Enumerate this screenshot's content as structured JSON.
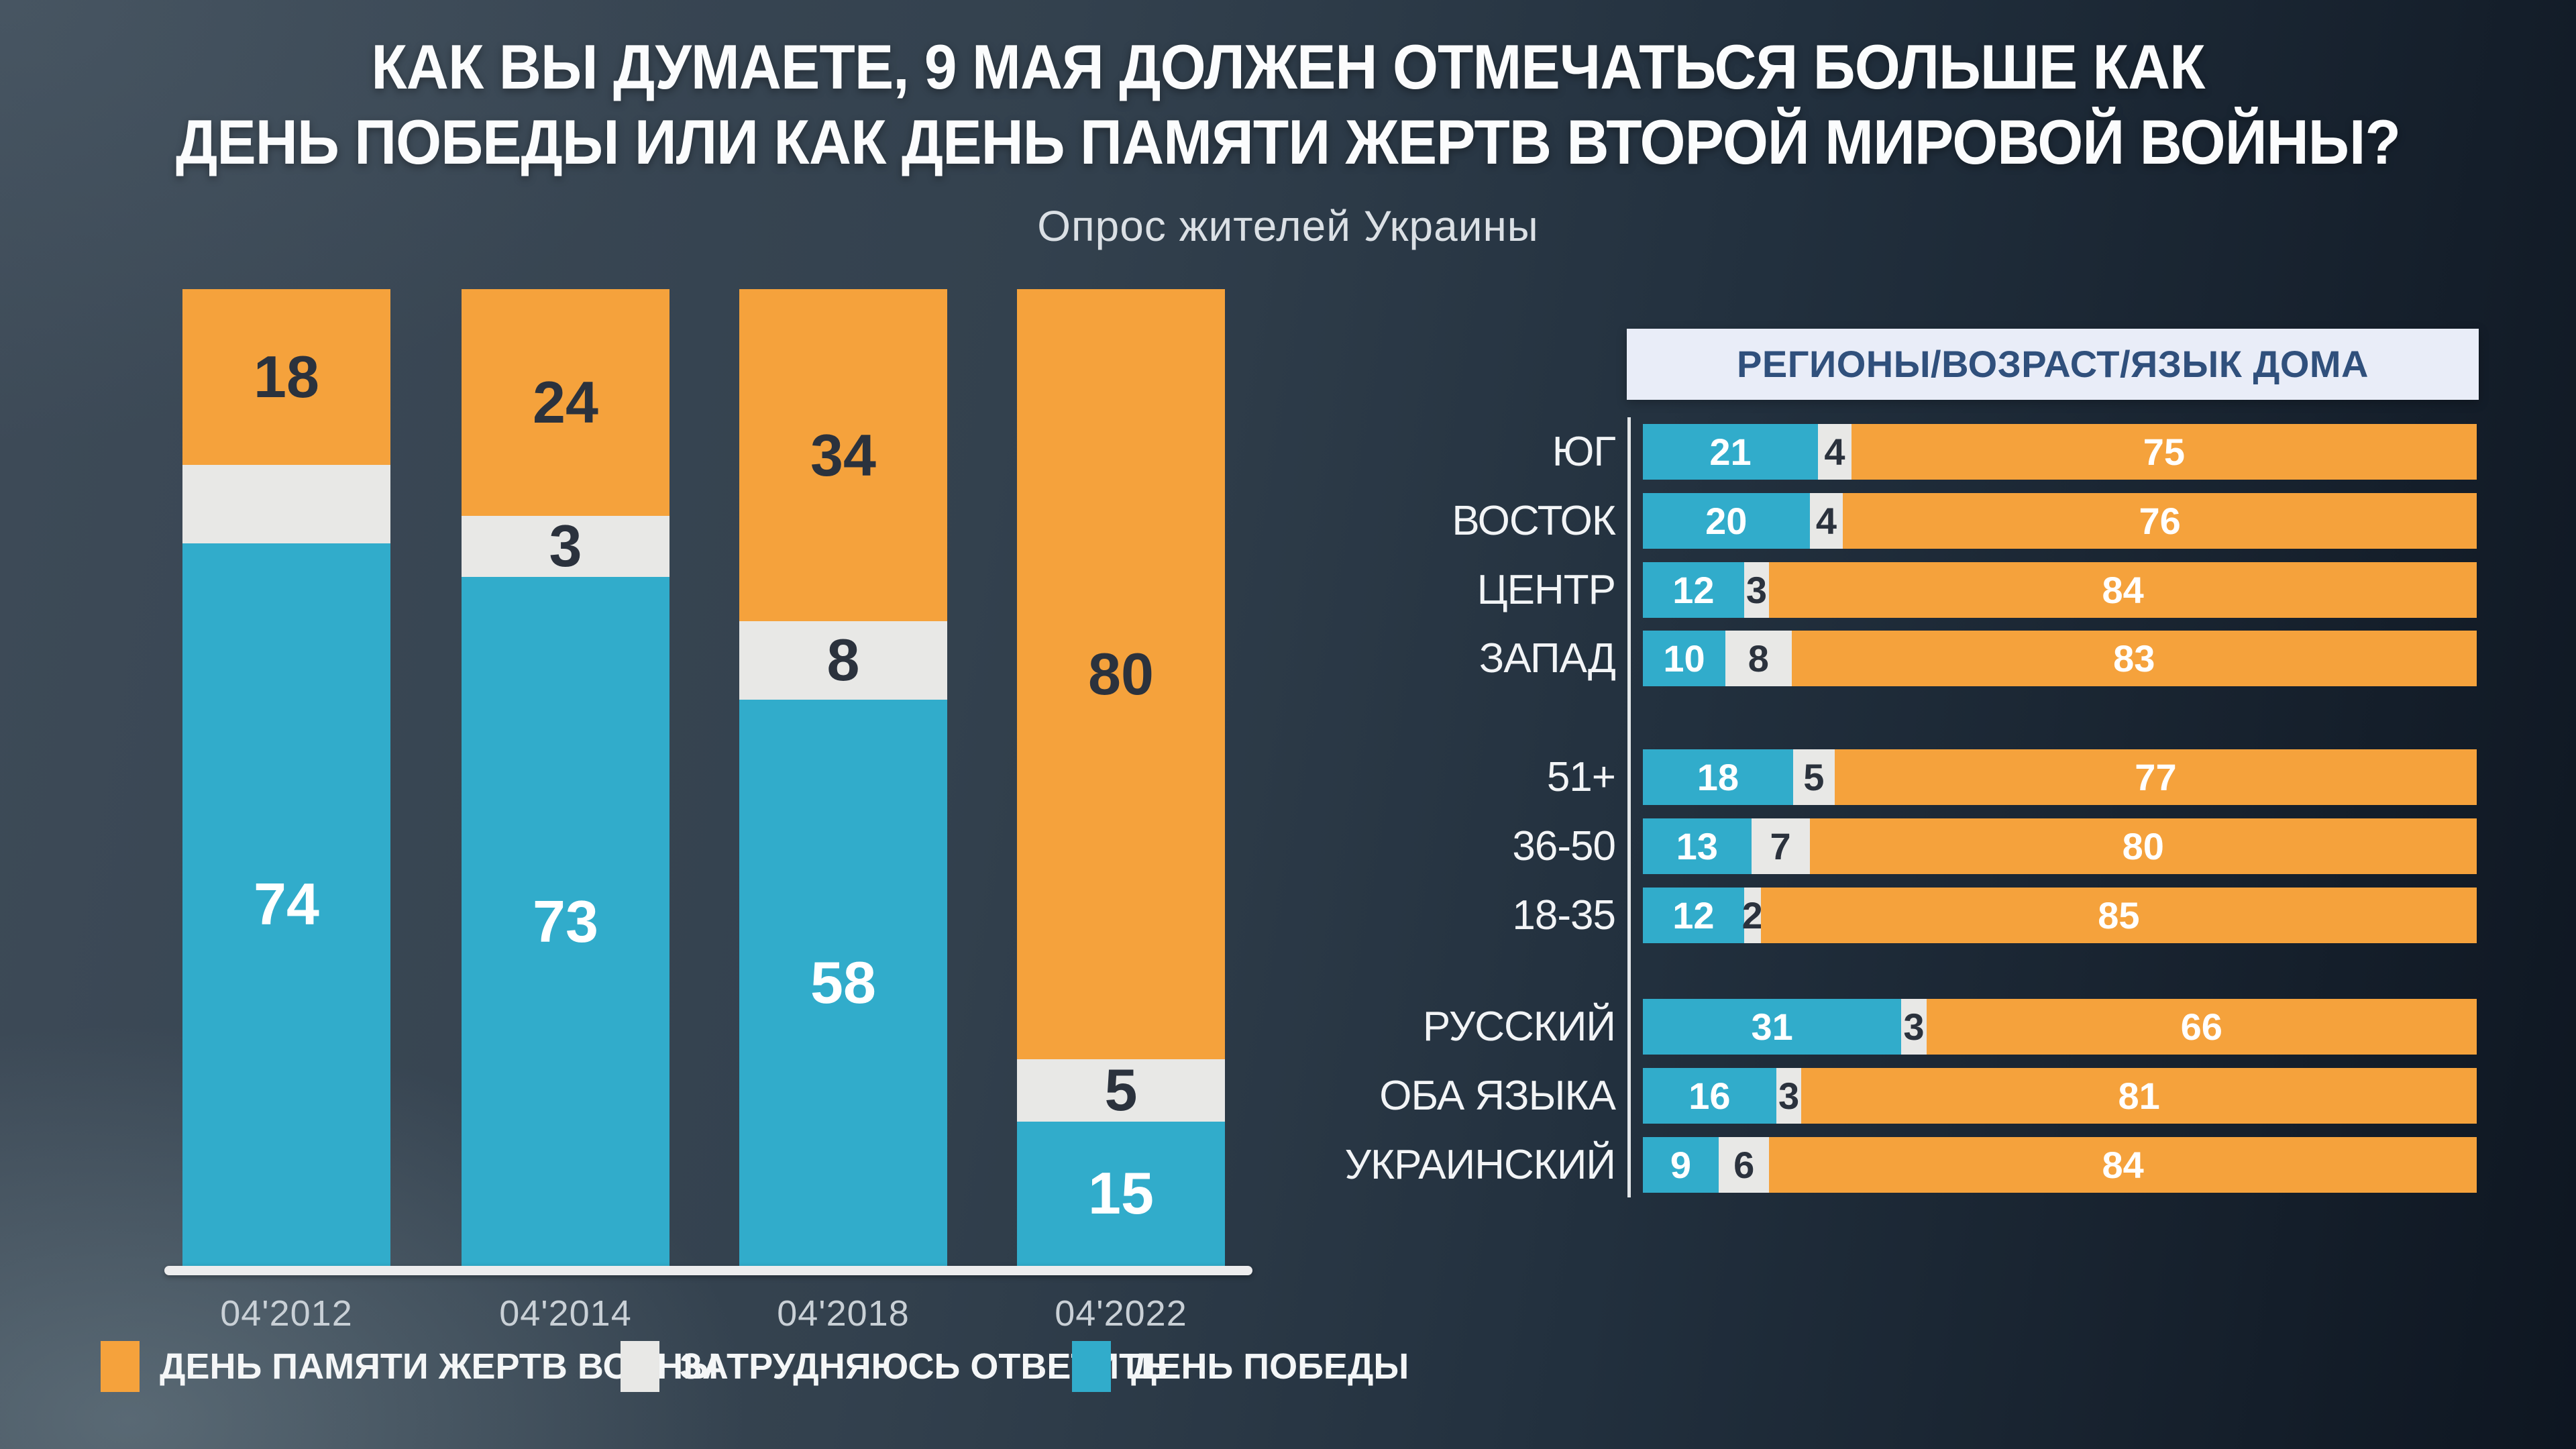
{
  "title": {
    "line1": "КАК ВЫ ДУМАЕТЕ, 9 МАЯ ДОЛЖЕН ОТМЕЧАТЬСЯ БОЛЬШЕ КАК",
    "line2": "ДЕНЬ ПОБЕДЫ ИЛИ КАК ДЕНЬ ПАМЯТИ ЖЕРТВ ВТОРОЙ МИРОВОЙ ВОЙНЫ?"
  },
  "subtitle": "Опрос жителей Украины",
  "colors": {
    "memorial": "#F5A23C",
    "undecided": "#E8E8E6",
    "victory": "#31ACCB",
    "dark_text": "#2B323D",
    "light_text": "#FFFFFF",
    "header_bg": "#E9EDF8",
    "header_text": "#30507C",
    "axis_line": "#EDEDEE",
    "muted_text": "#C9D0D6"
  },
  "legend": [
    {
      "key": "memorial",
      "label": "ДЕНЬ ПАМЯТИ ЖЕРТВ ВОЙНЫ"
    },
    {
      "key": "undecided",
      "label": "ЗАТРУДНЯЮСЬ ОТВЕТИТЬ"
    },
    {
      "key": "victory",
      "label": "ДЕНЬ ПОБЕДЫ"
    }
  ],
  "chart_data": [
    {
      "type": "bar",
      "subtype": "stacked-100-columns",
      "categories": [
        "04'2012",
        "04'2014",
        "04'2018",
        "04'2022"
      ],
      "series": [
        {
          "name": "ДЕНЬ ПАМЯТИ ЖЕРТВ ВОЙНЫ",
          "key": "memorial",
          "values": [
            18,
            24,
            34,
            80
          ]
        },
        {
          "name": "ЗАТРУДНЯЮСЬ ОТВЕТИТЬ",
          "key": "undecided",
          "values": [
            8,
            3,
            8,
            5
          ],
          "value_labels": [
            "",
            "3",
            "8",
            "5"
          ]
        },
        {
          "name": "ДЕНЬ ПОБЕДЫ",
          "key": "victory",
          "values": [
            74,
            73,
            58,
            15
          ]
        }
      ],
      "stack_total": 100,
      "legend_position": "bottom"
    },
    {
      "type": "bar",
      "subtype": "stacked-100-horizontal",
      "title": "РЕГИОНЫ/ВОЗРАСТ/ЯЗЫК ДОМА",
      "segment_order": [
        "victory",
        "undecided",
        "memorial"
      ],
      "rows": [
        {
          "label": "ЮГ",
          "group": "РЕГИОНЫ",
          "victory": 21,
          "undecided": 4,
          "memorial": 75
        },
        {
          "label": "ВОСТОК",
          "group": "РЕГИОНЫ",
          "victory": 20,
          "undecided": 4,
          "memorial": 76
        },
        {
          "label": "ЦЕНТР",
          "group": "РЕГИОНЫ",
          "victory": 12,
          "undecided": 3,
          "memorial": 84
        },
        {
          "label": "ЗАПАД",
          "group": "РЕГИОНЫ",
          "victory": 10,
          "undecided": 8,
          "memorial": 83
        },
        {
          "label": "51+",
          "group": "ВОЗРАСТ",
          "victory": 18,
          "undecided": 5,
          "memorial": 77
        },
        {
          "label": "36-50",
          "group": "ВОЗРАСТ",
          "victory": 13,
          "undecided": 7,
          "memorial": 80
        },
        {
          "label": "18-35",
          "group": "ВОЗРАСТ",
          "victory": 12,
          "undecided": 2,
          "memorial": 85
        },
        {
          "label": "РУССКИЙ",
          "group": "ЯЗЫК ДОМА",
          "victory": 31,
          "undecided": 3,
          "memorial": 66
        },
        {
          "label": "ОБА ЯЗЫКА",
          "group": "ЯЗЫК ДОМА",
          "victory": 16,
          "undecided": 3,
          "memorial": 81
        },
        {
          "label": "УКРАИНСКИЙ",
          "group": "ЯЗЫК ДОМА",
          "victory": 9,
          "undecided": 6,
          "memorial": 84
        }
      ]
    }
  ]
}
